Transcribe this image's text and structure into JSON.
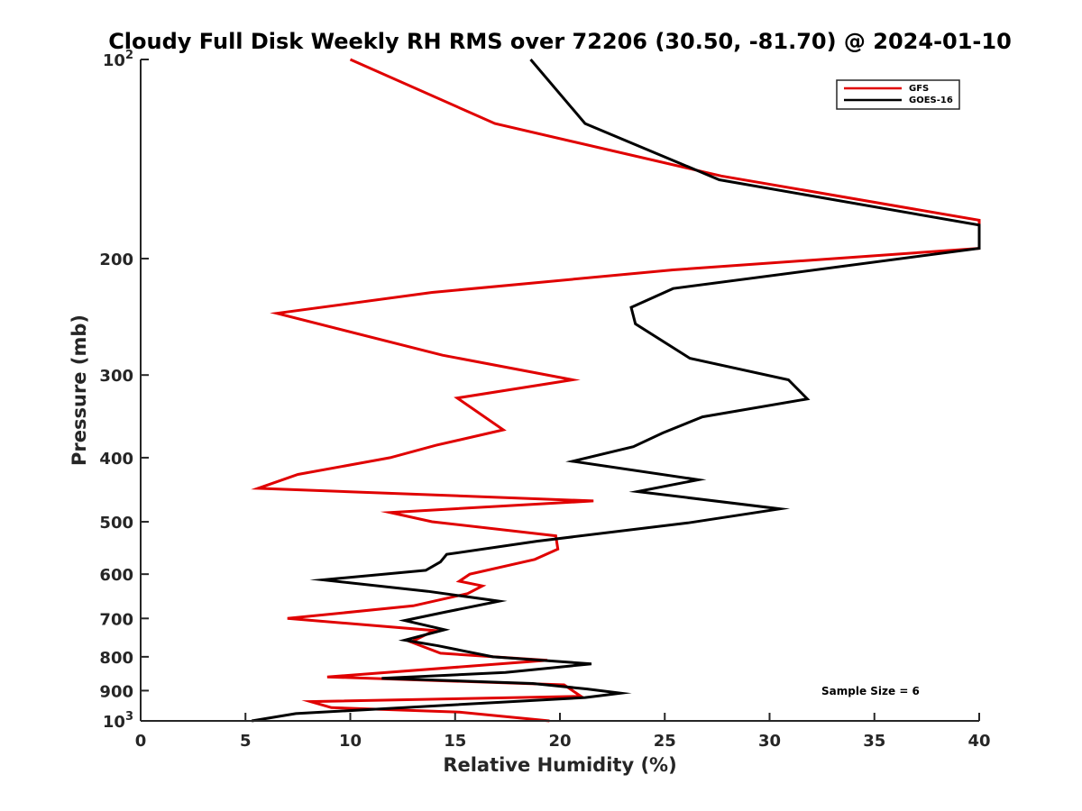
{
  "chart_data": {
    "type": "line",
    "title": "Cloudy Full Disk Weekly RH RMS over 72206 (30.50, -81.70) @ 2024-01-10",
    "xlabel": "Relative Humidity (%)",
    "ylabel": "Pressure (mb)",
    "xlim": [
      0,
      40
    ],
    "ylim": [
      100,
      1000
    ],
    "yscale": "log",
    "yreversed": true,
    "grid": false,
    "legend_position": "top-right",
    "xticks": [
      0,
      5,
      10,
      15,
      20,
      25,
      30,
      35,
      40
    ],
    "yticks": [
      {
        "value": 100,
        "base": "10",
        "exp": "2",
        "label": ""
      },
      {
        "value": 200,
        "label": "200"
      },
      {
        "value": 300,
        "label": "300"
      },
      {
        "value": 400,
        "label": "400"
      },
      {
        "value": 500,
        "label": "500"
      },
      {
        "value": 600,
        "label": "600"
      },
      {
        "value": 700,
        "label": "700"
      },
      {
        "value": 800,
        "label": "800"
      },
      {
        "value": 900,
        "label": "900"
      },
      {
        "value": 1000,
        "base": "10",
        "exp": "3",
        "label": ""
      }
    ],
    "series": [
      {
        "name": "GFS",
        "color": "#e00000",
        "points": [
          [
            10.0,
            100
          ],
          [
            16.9,
            125
          ],
          [
            27.7,
            150
          ],
          [
            40.0,
            175
          ],
          [
            40.0,
            193
          ],
          [
            25.4,
            208
          ],
          [
            13.9,
            225
          ],
          [
            6.5,
            242
          ],
          [
            14.4,
            280
          ],
          [
            20.6,
            305
          ],
          [
            15.1,
            325
          ],
          [
            16.0,
            340
          ],
          [
            17.3,
            363
          ],
          [
            14.1,
            383
          ],
          [
            11.9,
            400
          ],
          [
            7.5,
            424
          ],
          [
            5.6,
            445
          ],
          [
            21.6,
            465
          ],
          [
            11.9,
            484
          ],
          [
            13.9,
            500
          ],
          [
            19.8,
            525
          ],
          [
            19.9,
            550
          ],
          [
            18.8,
            570
          ],
          [
            15.7,
            600
          ],
          [
            15.2,
            615
          ],
          [
            16.3,
            625
          ],
          [
            15.6,
            642
          ],
          [
            13.0,
            670
          ],
          [
            7.0,
            700
          ],
          [
            14.0,
            730
          ],
          [
            12.9,
            760
          ],
          [
            14.3,
            790
          ],
          [
            19.4,
            810
          ],
          [
            8.9,
            858
          ],
          [
            20.2,
            882
          ],
          [
            21.0,
            918
          ],
          [
            8.1,
            935
          ],
          [
            9.1,
            955
          ],
          [
            15.2,
            970
          ],
          [
            19.5,
            1000
          ]
        ]
      },
      {
        "name": "GOES-16",
        "color": "#000000",
        "points": [
          [
            18.6,
            100
          ],
          [
            21.2,
            125
          ],
          [
            27.6,
            152
          ],
          [
            40.0,
            178
          ],
          [
            40.0,
            193
          ],
          [
            25.4,
            222
          ],
          [
            23.4,
            237
          ],
          [
            23.6,
            251
          ],
          [
            26.2,
            283
          ],
          [
            30.9,
            305
          ],
          [
            31.8,
            326
          ],
          [
            26.8,
            347
          ],
          [
            24.9,
            367
          ],
          [
            23.5,
            385
          ],
          [
            20.6,
            405
          ],
          [
            26.6,
            432
          ],
          [
            23.7,
            450
          ],
          [
            30.5,
            478
          ],
          [
            26.1,
            502
          ],
          [
            18.9,
            535
          ],
          [
            14.6,
            560
          ],
          [
            14.3,
            575
          ],
          [
            13.6,
            592
          ],
          [
            8.7,
            612
          ],
          [
            13.7,
            637
          ],
          [
            17.1,
            659
          ],
          [
            14.5,
            685
          ],
          [
            12.6,
            705
          ],
          [
            14.5,
            728
          ],
          [
            12.6,
            755
          ],
          [
            14.2,
            770
          ],
          [
            16.8,
            800
          ],
          [
            21.5,
            820
          ],
          [
            17.4,
            845
          ],
          [
            11.5,
            862
          ],
          [
            18.7,
            878
          ],
          [
            21.3,
            895
          ],
          [
            22.9,
            908
          ],
          [
            21.2,
            922
          ],
          [
            7.4,
            975
          ],
          [
            5.3,
            1000
          ]
        ]
      }
    ],
    "annotations": [
      "Sample Size = 6"
    ]
  },
  "legend": {
    "items": [
      {
        "label": "GFS",
        "color": "#e00000"
      },
      {
        "label": "GOES-16",
        "color": "#000000"
      }
    ]
  },
  "sample_size_text": "Sample Size = 6"
}
